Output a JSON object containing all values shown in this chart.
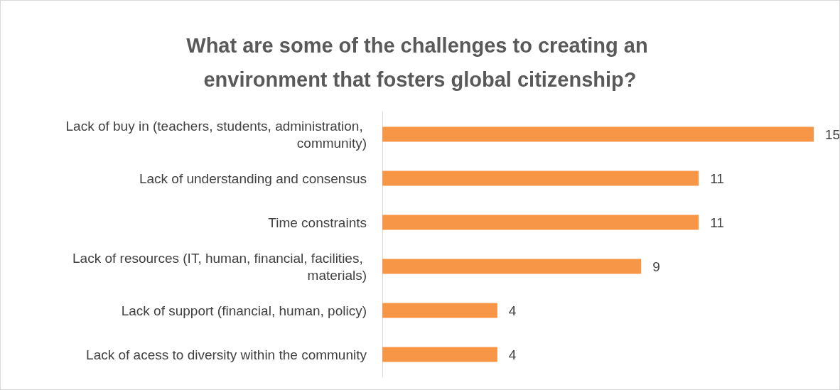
{
  "chart_data": {
    "type": "bar",
    "orientation": "horizontal",
    "title": "What are some of the challenges to creating an environment that fosters global citizenship?",
    "categories": [
      "Lack of buy in (teachers, students, administration, community)",
      "Lack of understanding and consensus",
      "Time constraints",
      "Lack of resources (IT, human, financial, facilities, materials)",
      "Lack of support (financial, human, policy)",
      "Lack of acess to diversity within the community"
    ],
    "values": [
      15,
      11,
      11,
      9,
      4,
      4
    ],
    "color": "#f79646",
    "data_labels": true,
    "grid": false,
    "tick_labels": "y"
  }
}
